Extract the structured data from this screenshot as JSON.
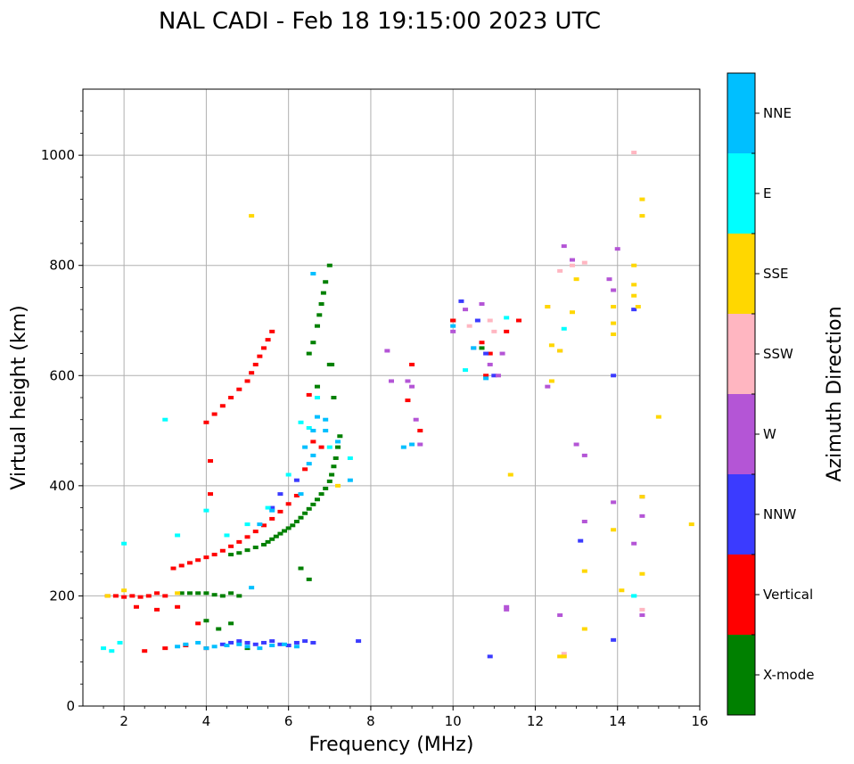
{
  "chart_data": {
    "type": "scatter",
    "title": "NAL CADI - Feb 18 19:15:00 2023 UTC",
    "xlabel": "Frequency (MHz)",
    "ylabel": "Virtual height (km)",
    "xlim": [
      1,
      16
    ],
    "ylim": [
      0,
      1120
    ],
    "xticks": [
      2,
      4,
      6,
      8,
      10,
      12,
      14,
      16
    ],
    "yticks": [
      0,
      200,
      400,
      600,
      800,
      1000
    ],
    "grid": true,
    "colorbar": {
      "label": "Azimuth Direction",
      "categories": [
        "X-mode",
        "Vertical",
        "NNW",
        "W",
        "SSW",
        "SSE",
        "E",
        "NNE"
      ],
      "colors": [
        "#008000",
        "#ff0000",
        "#3b3bff",
        "#b455d6",
        "#ffb6c1",
        "#ffd700",
        "#00ffff",
        "#00bfff"
      ]
    },
    "series": [
      {
        "name": "X-mode",
        "x": [
          4.6,
          4.8,
          5.0,
          5.2,
          5.4,
          5.5,
          5.6,
          5.7,
          5.8,
          5.9,
          6.0,
          6.1,
          6.2,
          6.3,
          6.4,
          6.5,
          6.6,
          6.7,
          6.8,
          6.9,
          7.0,
          7.05,
          7.1,
          7.15,
          7.2,
          7.25,
          6.5,
          6.6,
          6.7,
          6.75,
          6.8,
          6.85,
          6.9,
          7.0,
          7.05,
          6.3,
          6.5,
          6.7,
          7.0,
          7.1,
          3.4,
          3.6,
          3.8,
          4.0,
          4.2,
          4.4,
          4.6,
          4.8,
          5.0,
          4.0,
          4.3,
          4.6,
          10.0,
          10.7
        ],
        "y": [
          275,
          278,
          283,
          288,
          293,
          298,
          303,
          308,
          313,
          318,
          323,
          328,
          335,
          342,
          350,
          358,
          366,
          375,
          385,
          395,
          408,
          420,
          435,
          450,
          470,
          490,
          640,
          660,
          690,
          710,
          730,
          750,
          770,
          800,
          620,
          250,
          230,
          580,
          620,
          560,
          205,
          205,
          205,
          205,
          202,
          200,
          205,
          200,
          105,
          155,
          140,
          150,
          700,
          650
        ]
      },
      {
        "name": "Vertical",
        "x": [
          3.2,
          3.4,
          3.6,
          3.8,
          4.0,
          4.2,
          4.4,
          4.6,
          4.8,
          5.0,
          5.2,
          5.4,
          5.6,
          5.8,
          6.0,
          6.2,
          4.0,
          4.2,
          4.4,
          4.6,
          4.8,
          5.0,
          5.1,
          5.2,
          5.3,
          5.4,
          5.5,
          5.6,
          4.1,
          6.4,
          6.6,
          6.5,
          6.8,
          4.1,
          1.6,
          1.8,
          2.0,
          2.2,
          2.4,
          2.6,
          2.8,
          3.0,
          2.5,
          3.0,
          3.5,
          4.0,
          2.3,
          2.8,
          3.3,
          3.8,
          9.0,
          8.9,
          9.2,
          10.7,
          11.3,
          10.0,
          10.8,
          11.6,
          10.9
        ],
        "y": [
          250,
          255,
          260,
          265,
          270,
          275,
          282,
          290,
          298,
          307,
          317,
          328,
          340,
          353,
          367,
          382,
          515,
          530,
          545,
          560,
          575,
          590,
          605,
          620,
          635,
          650,
          665,
          680,
          385,
          430,
          480,
          565,
          470,
          445,
          200,
          200,
          198,
          200,
          198,
          200,
          205,
          200,
          100,
          105,
          110,
          105,
          180,
          175,
          180,
          150,
          620,
          555,
          500,
          660,
          680,
          700,
          600,
          700,
          640
        ]
      },
      {
        "name": "NNW",
        "x": [
          4.4,
          4.6,
          4.8,
          5.0,
          5.2,
          5.4,
          5.6,
          5.8,
          6.0,
          6.2,
          6.4,
          6.6,
          5.6,
          5.8,
          6.2,
          7.7,
          10.2,
          10.6,
          10.8,
          11.0,
          10.9,
          13.1,
          13.9,
          13.9,
          14.4
        ],
        "y": [
          112,
          115,
          118,
          115,
          112,
          115,
          118,
          112,
          110,
          115,
          118,
          115,
          360,
          385,
          410,
          118,
          735,
          700,
          640,
          600,
          90,
          300,
          600,
          120,
          720
        ]
      },
      {
        "name": "W",
        "x": [
          8.4,
          8.5,
          8.9,
          9.0,
          9.1,
          9.2,
          10.0,
          10.3,
          10.5,
          10.7,
          10.9,
          11.1,
          11.2,
          11.3,
          12.3,
          12.6,
          12.7,
          12.9,
          13.2,
          13.2,
          13.0,
          13.8,
          13.9,
          14.0,
          13.9,
          14.4,
          14.6,
          14.6,
          12.6,
          11.3,
          14.6
        ],
        "y": [
          645,
          590,
          590,
          580,
          520,
          475,
          680,
          720,
          650,
          730,
          620,
          600,
          640,
          180,
          580,
          165,
          835,
          810,
          455,
          335,
          475,
          775,
          755,
          830,
          370,
          295,
          345,
          380,
          645,
          175,
          165
        ]
      },
      {
        "name": "SSW",
        "x": [
          10.9,
          11.0,
          12.3,
          12.6,
          12.9,
          13.2,
          14.4,
          14.6,
          12.7,
          10.4
        ],
        "y": [
          700,
          680,
          725,
          790,
          800,
          805,
          1005,
          175,
          95,
          690
        ]
      },
      {
        "name": "SSE",
        "x": [
          5.1,
          7.2,
          11.4,
          12.3,
          12.4,
          12.4,
          12.6,
          12.7,
          12.9,
          13.0,
          13.2,
          13.2,
          13.9,
          13.9,
          13.9,
          14.1,
          14.4,
          14.4,
          14.4,
          14.6,
          14.6,
          14.6,
          14.6,
          15.0,
          15.8,
          14.5,
          13.9,
          12.6,
          1.6,
          2.0,
          3.3
        ],
        "y": [
          890,
          400,
          420,
          725,
          655,
          590,
          645,
          90,
          715,
          775,
          245,
          140,
          725,
          675,
          320,
          210,
          800,
          745,
          765,
          920,
          890,
          240,
          380,
          525,
          330,
          725,
          695,
          90,
          200,
          210,
          205
        ]
      },
      {
        "name": "E",
        "x": [
          3.0,
          3.3,
          4.0,
          4.5,
          5.0,
          5.5,
          6.0,
          6.3,
          6.5,
          7.0,
          7.5,
          2.0,
          1.7,
          1.9,
          1.5,
          12.7,
          14.4,
          14.4,
          10.3,
          11.3,
          6.7
        ],
        "y": [
          520,
          310,
          355,
          310,
          330,
          360,
          420,
          515,
          505,
          470,
          450,
          295,
          100,
          115,
          105,
          685,
          200,
          200,
          610,
          705,
          560
        ]
      },
      {
        "name": "NNE",
        "x": [
          3.3,
          3.5,
          3.8,
          4.0,
          4.2,
          4.5,
          4.8,
          5.0,
          5.3,
          5.6,
          5.9,
          6.2,
          6.4,
          6.6,
          6.7,
          6.9,
          7.2,
          7.5,
          5.1,
          5.3,
          5.6,
          6.3,
          6.5,
          6.6,
          6.9,
          6.6,
          10.0,
          10.8,
          9.0,
          8.8,
          10.5
        ],
        "y": [
          108,
          112,
          115,
          105,
          108,
          110,
          112,
          108,
          105,
          110,
          112,
          108,
          470,
          500,
          525,
          520,
          480,
          410,
          215,
          330,
          355,
          385,
          440,
          785,
          500,
          455,
          690,
          595,
          475,
          470,
          650
        ]
      }
    ]
  }
}
